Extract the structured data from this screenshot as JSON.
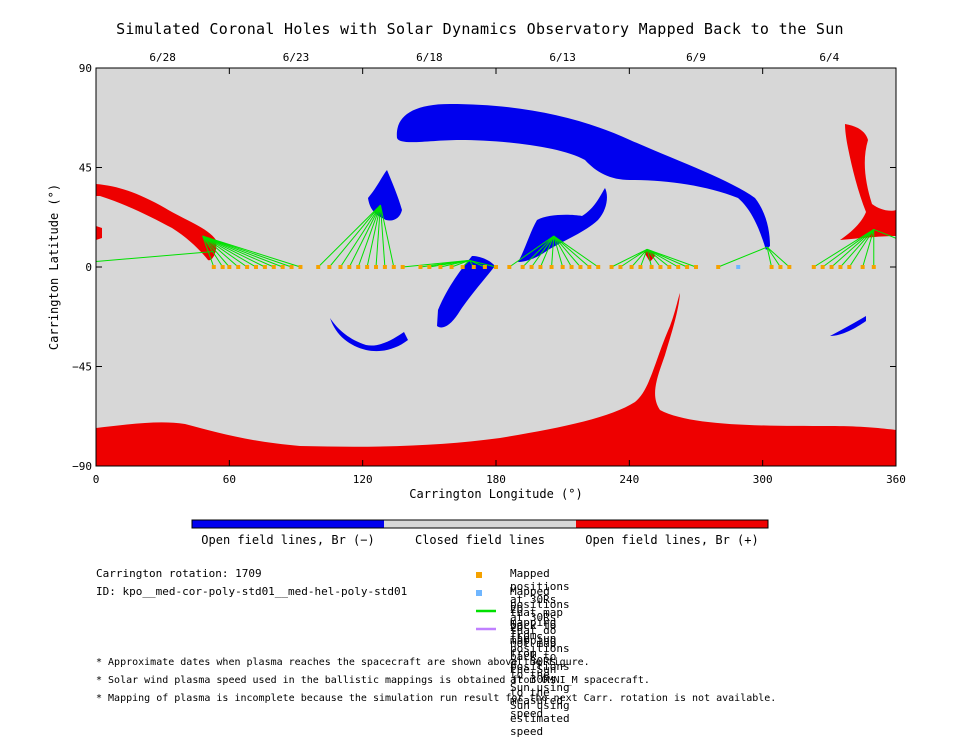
{
  "title": "Simulated Coronal Holes with Solar Dynamics Observatory Mapped Back to the Sun",
  "chart_data": {
    "type": "map",
    "xlabel": "Carrington Longitude (°)",
    "ylabel": "Carrington Latitude (°)",
    "xlim": [
      0,
      360
    ],
    "ylim": [
      -90,
      90
    ],
    "x_ticks": [
      "0",
      "60",
      "120",
      "180",
      "240",
      "300",
      "360"
    ],
    "y_ticks": [
      "90",
      "45",
      "0",
      "−45",
      "−90"
    ],
    "top_date_ticks": [
      {
        "label": "6/28",
        "lon": 30
      },
      {
        "label": "6/23",
        "lon": 90
      },
      {
        "label": "6/18",
        "lon": 150
      },
      {
        "label": "6/13",
        "lon": 210
      },
      {
        "label": "6/9",
        "lon": 270
      },
      {
        "label": "6/4",
        "lon": 330
      }
    ],
    "background_color": "#d7d7d7",
    "colorbar": [
      {
        "label": "Open field lines, Br (−)",
        "color": "#0000ee"
      },
      {
        "label": "Closed field lines",
        "color": "#d7d7d7"
      },
      {
        "label": "Open field lines, Br (+)",
        "color": "#ee0000"
      }
    ],
    "mapped_positions_lon": [
      53,
      57,
      60,
      64,
      68,
      72,
      76,
      80,
      84,
      88,
      92,
      100,
      105,
      110,
      114,
      118,
      122,
      126,
      130,
      134,
      138,
      146,
      150,
      155,
      160,
      165,
      170,
      175,
      180,
      186,
      192,
      196,
      200,
      205,
      210,
      214,
      218,
      222,
      226,
      232,
      236,
      241,
      245,
      250,
      254,
      258,
      262,
      266,
      270,
      280,
      304,
      308,
      312,
      323,
      327,
      331,
      335,
      339,
      345,
      350
    ],
    "unmapped_positions_lon": [
      289
    ],
    "mapped_color": "#f5a200",
    "unmapped_color": "#6fb6ff",
    "measured_line_color": "#00e000",
    "estimated_line_color": "#c080ff"
  },
  "colorbar_labels": {
    "negative": "Open field lines, Br (−)",
    "closed": "Closed field lines",
    "positive": "Open field lines, Br (+)"
  },
  "info": {
    "rotation": "Carrington rotation: 1709",
    "id": "ID: kpo__med-cor-poly-std01__med-hel-poly-std01"
  },
  "legend": [
    {
      "label": "Mapped positions at 30Rs that map back to the Sun",
      "color": "#f5a200",
      "kind": "square"
    },
    {
      "label": "Mapped positions at 30Rs that do not map back to the Sun",
      "color": "#6fb6ff",
      "kind": "square"
    },
    {
      "label": "2D mapping from positions at 30Rs to the Sun using measured speed",
      "color": "#00e000",
      "kind": "line"
    },
    {
      "label": "2D mapping from positions at 30Rs to the Sun using estimated speed",
      "color": "#c080ff",
      "kind": "line"
    }
  ],
  "notes": [
    "* Approximate dates when plasma reaches the spacecraft are shown above the figure.",
    "* Solar wind plasma speed used in the ballistic mappings is obtained from OMNI_M spacecraft.",
    "* Mapping of plasma is incomplete because the simulation run result for the next Carr. rotation is not available."
  ]
}
